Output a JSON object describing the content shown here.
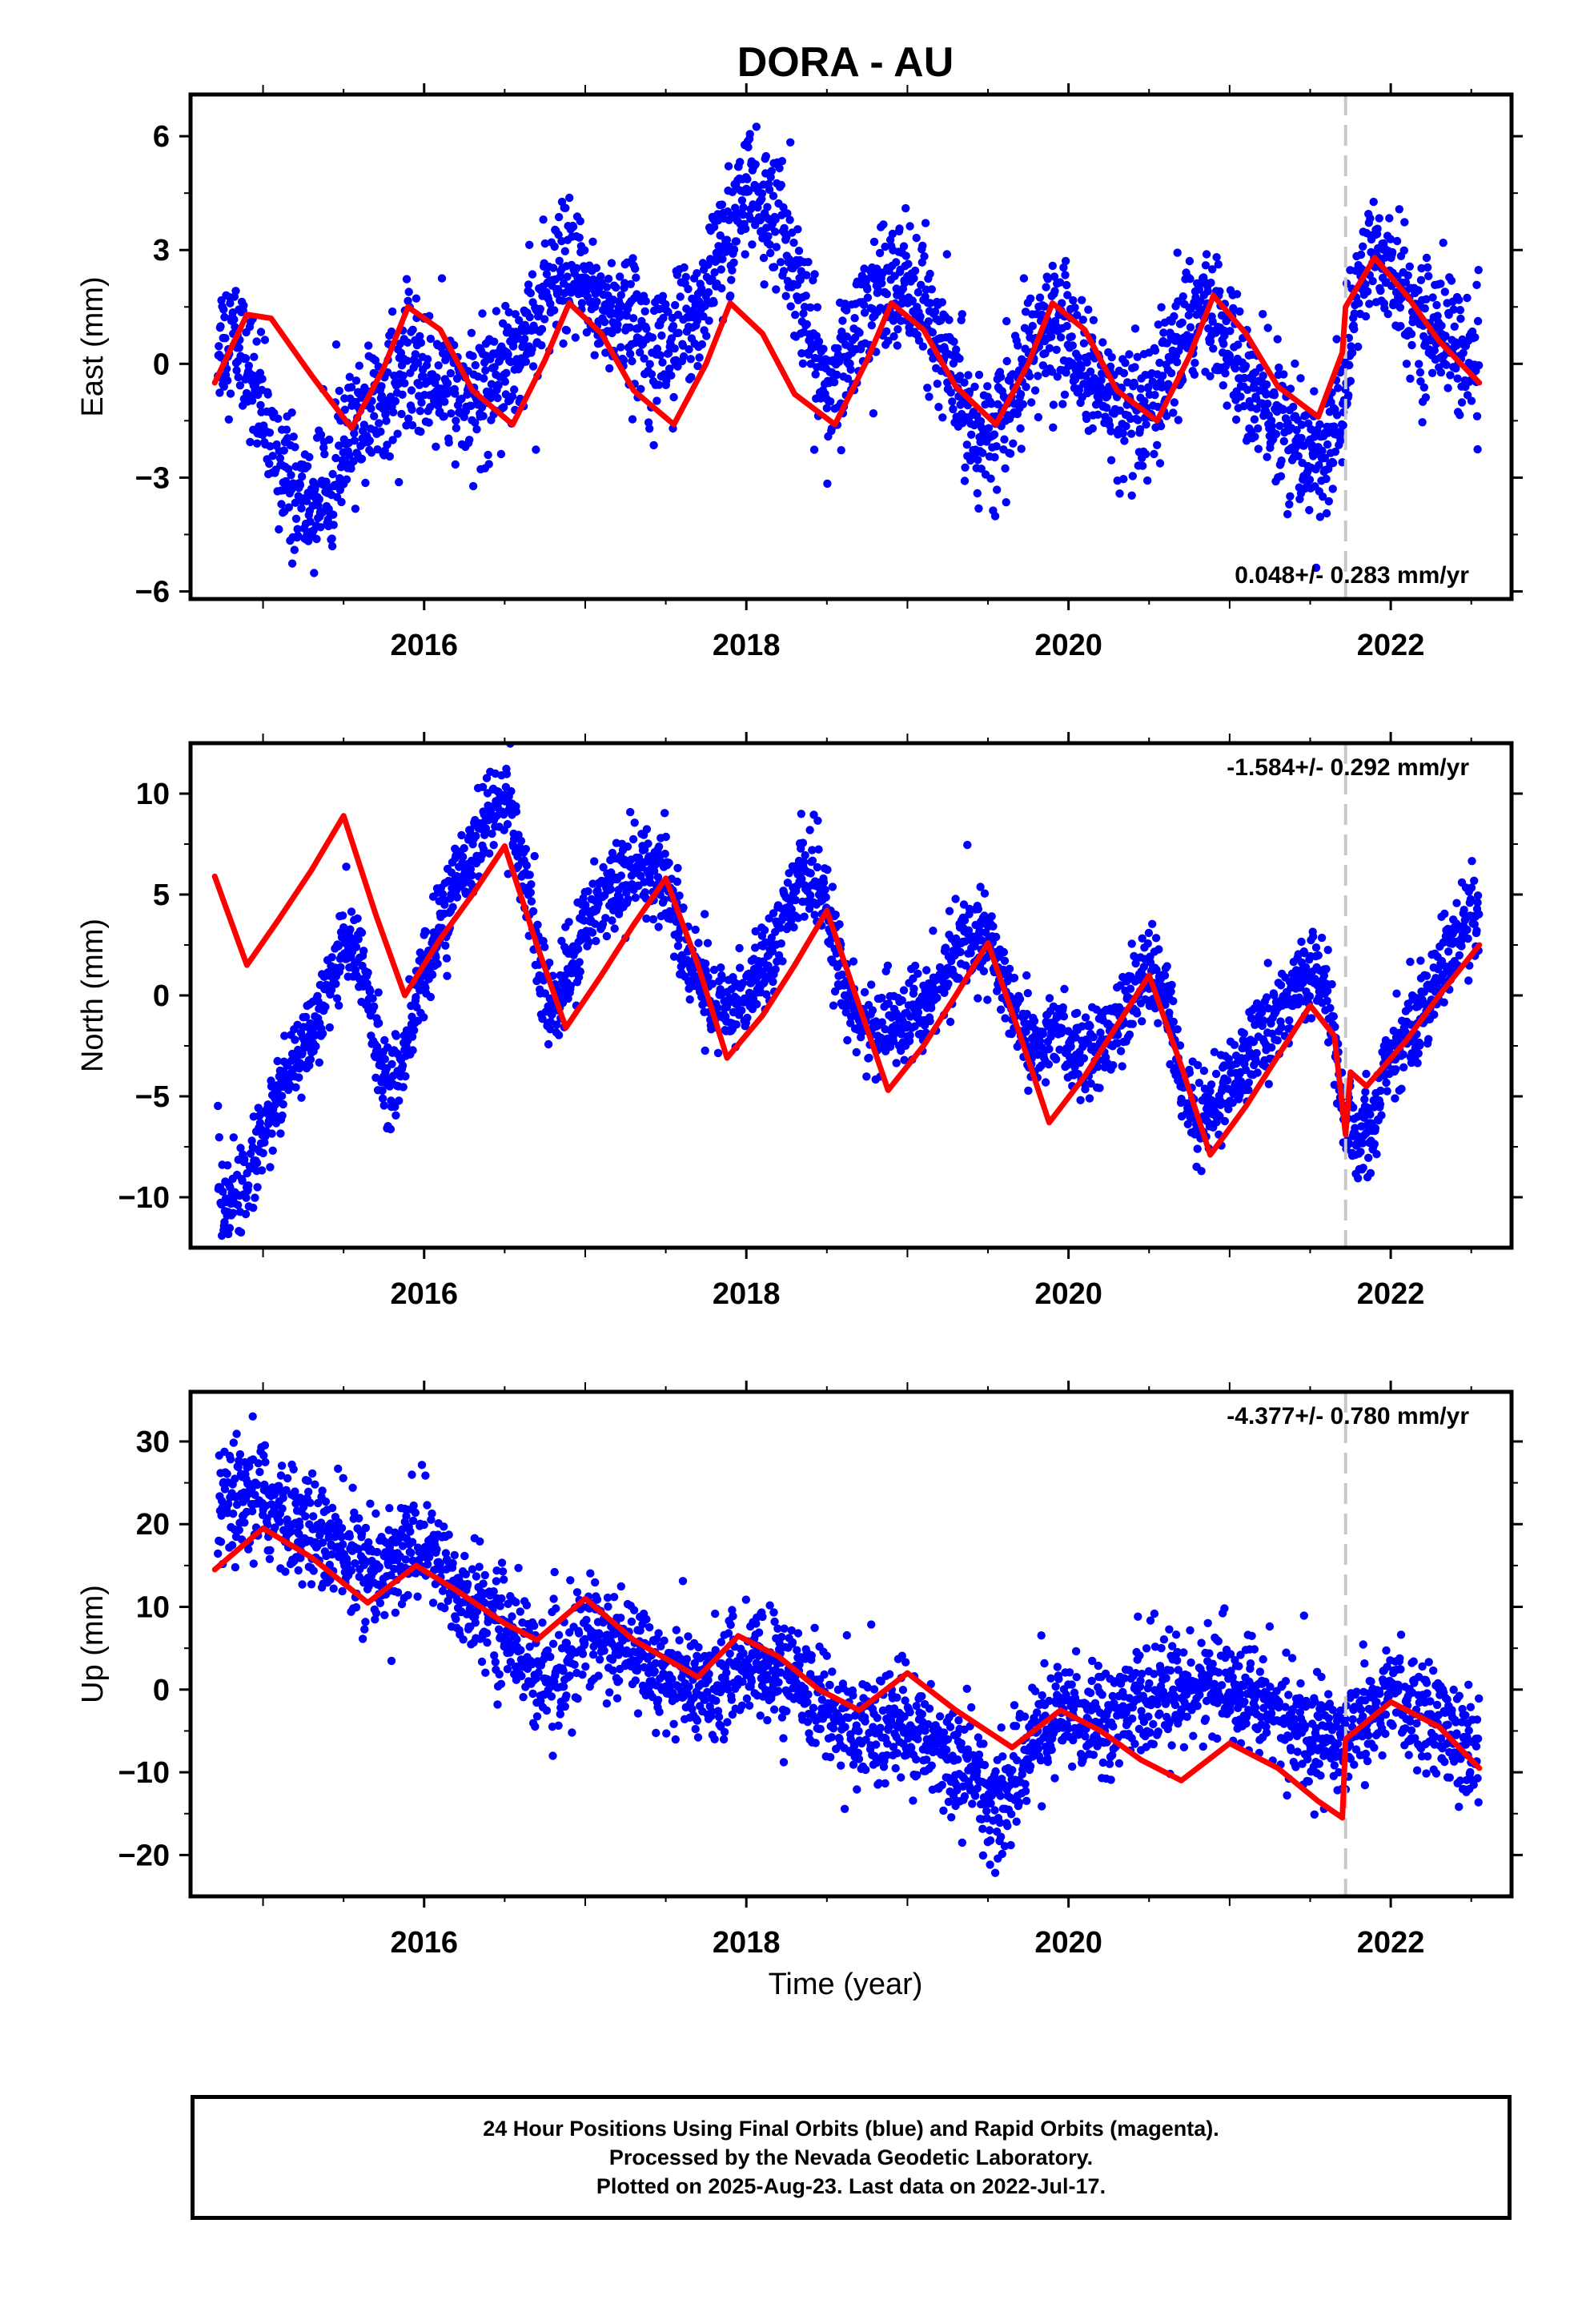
{
  "title": "DORA - AU",
  "colors": {
    "final_orbits": "#0000ff",
    "model_fit": "#ff0000",
    "equipment_change_line": "#c8c8c8"
  },
  "footer": {
    "line1": "24 Hour Positions Using Final Orbits (blue) and Rapid Orbits (magenta).",
    "line2": "Processed by the Nevada Geodetic Laboratory.",
    "line3": "Plotted on 2025-Aug-23. Last data on 2022-Jul-17."
  },
  "chart_data": [
    {
      "type": "scatter",
      "ylabel": "East (mm)",
      "xlabel": "",
      "xlim": [
        2014.55,
        2022.75
      ],
      "ylim": [
        -6.2,
        7.1
      ],
      "yticks": [
        -6,
        -3,
        0,
        3,
        6
      ],
      "ytick_labels": [
        "−6",
        "−3",
        "0",
        "3",
        "6"
      ],
      "xticks": [
        2016,
        2018,
        2020,
        2022
      ],
      "xtick_labels": [
        "2016",
        "2018",
        "2020",
        "2022"
      ],
      "rate_label": "0.048+/- 0.283 mm/yr",
      "rate_position": "bottom-right",
      "equipment_change": 2021.72,
      "series": [
        {
          "role": "daily_positions",
          "x": [
            2014.7,
            2014.8,
            2014.9,
            2015.0,
            2015.1,
            2015.2,
            2015.3,
            2015.4,
            2015.5,
            2015.6,
            2015.7,
            2015.8,
            2015.9,
            2016.0,
            2016.1,
            2016.2,
            2016.3,
            2016.4,
            2016.5,
            2016.6,
            2016.7,
            2016.8,
            2016.9,
            2017.0,
            2017.1,
            2017.2,
            2017.3,
            2017.4,
            2017.5,
            2017.6,
            2017.7,
            2017.8,
            2017.9,
            2018.0,
            2018.1,
            2018.2,
            2018.3,
            2018.4,
            2018.5,
            2018.6,
            2018.7,
            2018.8,
            2018.9,
            2019.0,
            2019.1,
            2019.2,
            2019.3,
            2019.4,
            2019.5,
            2019.6,
            2019.7,
            2019.8,
            2019.9,
            2020.0,
            2020.1,
            2020.2,
            2020.3,
            2020.4,
            2020.5,
            2020.6,
            2020.7,
            2020.8,
            2020.9,
            2021.0,
            2021.1,
            2021.2,
            2021.3,
            2021.4,
            2021.5,
            2021.6,
            2021.7,
            2021.8,
            2021.9,
            2022.0,
            2022.1,
            2022.2,
            2022.3,
            2022.4,
            2022.5
          ],
          "y": [
            0.5,
            0.8,
            0.2,
            -1.5,
            -2.5,
            -3.5,
            -3.8,
            -3.0,
            -2.5,
            -1.5,
            -1.0,
            -0.5,
            0.0,
            -0.3,
            -0.5,
            -0.8,
            -1.0,
            -0.5,
            0.2,
            0.5,
            1.2,
            2.0,
            2.5,
            2.0,
            1.5,
            1.2,
            1.0,
            0.8,
            0.5,
            0.8,
            1.5,
            2.5,
            3.5,
            4.5,
            4.2,
            3.8,
            2.5,
            0.5,
            -0.5,
            0.0,
            1.0,
            2.0,
            2.5,
            2.0,
            1.5,
            0.5,
            -0.5,
            -1.5,
            -2.0,
            -1.5,
            -0.5,
            0.5,
            1.0,
            0.8,
            0.0,
            -0.8,
            -1.2,
            -1.5,
            -1.5,
            -0.5,
            0.5,
            1.5,
            1.2,
            0.5,
            -0.5,
            -1.0,
            -1.5,
            -2.0,
            -2.5,
            -2.5,
            -1.0,
            2.0,
            3.0,
            2.5,
            1.5,
            1.0,
            1.0,
            0.5,
            0.0
          ],
          "spread": 1.0
        },
        {
          "role": "model_fit",
          "x": [
            2014.7,
            2014.9,
            2015.05,
            2015.3,
            2015.55,
            2015.75,
            2015.9,
            2016.1,
            2016.3,
            2016.55,
            2016.75,
            2016.9,
            2017.1,
            2017.3,
            2017.55,
            2017.75,
            2017.9,
            2018.1,
            2018.3,
            2018.55,
            2018.75,
            2018.9,
            2019.1,
            2019.3,
            2019.55,
            2019.75,
            2019.9,
            2020.1,
            2020.3,
            2020.55,
            2020.75,
            2020.9,
            2021.1,
            2021.3,
            2021.55,
            2021.7,
            2021.72,
            2021.9,
            2022.1,
            2022.3,
            2022.55
          ],
          "y": [
            -0.5,
            1.3,
            1.2,
            -0.3,
            -1.7,
            -0.1,
            1.5,
            0.9,
            -0.7,
            -1.6,
            0.1,
            1.6,
            0.8,
            -0.7,
            -1.6,
            0.0,
            1.6,
            0.8,
            -0.8,
            -1.6,
            0.1,
            1.6,
            0.9,
            -0.6,
            -1.6,
            0.0,
            1.6,
            0.9,
            -0.7,
            -1.5,
            0.2,
            1.8,
            0.8,
            -0.6,
            -1.4,
            0.3,
            1.5,
            2.8,
            1.8,
            0.6,
            -0.5
          ]
        }
      ]
    },
    {
      "type": "scatter",
      "ylabel": "North (mm)",
      "xlabel": "",
      "xlim": [
        2014.55,
        2022.75
      ],
      "ylim": [
        -12.5,
        12.5
      ],
      "yticks": [
        -10,
        -5,
        0,
        5,
        10
      ],
      "ytick_labels": [
        "−10",
        "−5",
        "0",
        "5",
        "10"
      ],
      "xticks": [
        2016,
        2018,
        2020,
        2022
      ],
      "xtick_labels": [
        "2016",
        "2018",
        "2020",
        "2022"
      ],
      "rate_label": "-1.584+/- 0.292 mm/yr",
      "rate_position": "top-right",
      "equipment_change": 2021.72,
      "series": [
        {
          "role": "daily_positions",
          "x": [
            2014.7,
            2014.8,
            2014.9,
            2015.0,
            2015.1,
            2015.2,
            2015.3,
            2015.4,
            2015.5,
            2015.6,
            2015.7,
            2015.8,
            2015.9,
            2016.0,
            2016.1,
            2016.2,
            2016.3,
            2016.4,
            2016.5,
            2016.6,
            2016.7,
            2016.8,
            2016.9,
            2017.0,
            2017.1,
            2017.2,
            2017.3,
            2017.4,
            2017.5,
            2017.6,
            2017.7,
            2017.8,
            2017.9,
            2018.0,
            2018.1,
            2018.2,
            2018.3,
            2018.4,
            2018.5,
            2018.6,
            2018.7,
            2018.8,
            2018.9,
            2019.0,
            2019.1,
            2019.2,
            2019.3,
            2019.4,
            2019.5,
            2019.6,
            2019.7,
            2019.8,
            2019.9,
            2020.0,
            2020.1,
            2020.2,
            2020.3,
            2020.4,
            2020.5,
            2020.6,
            2020.7,
            2020.8,
            2020.9,
            2021.0,
            2021.1,
            2021.2,
            2021.3,
            2021.4,
            2021.5,
            2021.6,
            2021.7,
            2021.8,
            2021.9,
            2022.0,
            2022.1,
            2022.2,
            2022.3,
            2022.4,
            2022.5
          ],
          "y": [
            -9.5,
            -10.5,
            -9.0,
            -7.0,
            -5.0,
            -3.5,
            -2.0,
            0.5,
            2.5,
            2.0,
            -2.0,
            -5.0,
            -2.0,
            1.0,
            3.5,
            5.5,
            7.0,
            9.0,
            10.0,
            7.0,
            2.0,
            -1.0,
            1.0,
            3.5,
            5.0,
            6.0,
            6.0,
            6.5,
            6.0,
            2.5,
            1.0,
            -0.5,
            -1.0,
            0.5,
            1.5,
            3.5,
            5.5,
            6.0,
            4.0,
            0.5,
            -1.0,
            -2.0,
            -1.5,
            -1.0,
            -0.5,
            0.5,
            2.0,
            3.0,
            2.5,
            1.0,
            -1.5,
            -2.5,
            -2.0,
            -2.5,
            -3.0,
            -2.5,
            -1.5,
            0.0,
            1.0,
            0.0,
            -4.0,
            -6.0,
            -5.5,
            -4.5,
            -3.0,
            -2.0,
            -1.0,
            0.5,
            1.0,
            0.5,
            -5.5,
            -7.0,
            -6.0,
            -3.0,
            -2.0,
            -0.5,
            1.0,
            2.5,
            3.5
          ],
          "spread": 1.3
        },
        {
          "role": "model_fit",
          "x": [
            2014.7,
            2014.9,
            2015.1,
            2015.3,
            2015.5,
            2015.7,
            2015.88,
            2016.1,
            2016.3,
            2016.5,
            2016.7,
            2016.88,
            2017.1,
            2017.3,
            2017.5,
            2017.7,
            2017.88,
            2018.1,
            2018.3,
            2018.5,
            2018.7,
            2018.88,
            2019.1,
            2019.3,
            2019.5,
            2019.7,
            2019.88,
            2020.1,
            2020.3,
            2020.5,
            2020.7,
            2020.88,
            2021.1,
            2021.3,
            2021.5,
            2021.65,
            2021.72,
            2021.75,
            2021.85,
            2022.1,
            2022.3,
            2022.55
          ],
          "y": [
            5.9,
            1.5,
            3.8,
            6.2,
            8.9,
            4.0,
            0.0,
            2.8,
            5.0,
            7.4,
            2.5,
            -1.6,
            1.0,
            3.5,
            5.8,
            1.5,
            -3.1,
            -1.0,
            1.5,
            4.2,
            -0.5,
            -4.7,
            -2.5,
            0.0,
            2.6,
            -2.0,
            -6.3,
            -4.0,
            -1.5,
            1.0,
            -3.5,
            -7.9,
            -5.5,
            -3.0,
            -0.5,
            -2.0,
            -6.9,
            -3.8,
            -4.5,
            -2.2,
            0.0,
            2.5
          ]
        }
      ]
    },
    {
      "type": "scatter",
      "ylabel": "Up (mm)",
      "xlabel": "Time (year)",
      "xlim": [
        2014.55,
        2022.75
      ],
      "ylim": [
        -25,
        36
      ],
      "yticks": [
        -20,
        -10,
        0,
        10,
        20,
        30
      ],
      "ytick_labels": [
        "−20",
        "−10",
        "0",
        "10",
        "20",
        "30"
      ],
      "xticks": [
        2016,
        2018,
        2020,
        2022
      ],
      "xtick_labels": [
        "2016",
        "2018",
        "2020",
        "2022"
      ],
      "rate_label": "-4.377+/- 0.780 mm/yr",
      "rate_position": "top-right",
      "equipment_change": 2021.72,
      "series": [
        {
          "role": "daily_positions",
          "x": [
            2014.7,
            2014.8,
            2014.9,
            2015.0,
            2015.1,
            2015.2,
            2015.3,
            2015.4,
            2015.5,
            2015.6,
            2015.7,
            2015.8,
            2015.9,
            2016.0,
            2016.1,
            2016.2,
            2016.3,
            2016.4,
            2016.5,
            2016.6,
            2016.7,
            2016.8,
            2016.9,
            2017.0,
            2017.1,
            2017.2,
            2017.3,
            2017.4,
            2017.5,
            2017.6,
            2017.7,
            2017.8,
            2017.9,
            2018.0,
            2018.1,
            2018.2,
            2018.3,
            2018.4,
            2018.5,
            2018.6,
            2018.7,
            2018.8,
            2018.9,
            2019.0,
            2019.1,
            2019.2,
            2019.3,
            2019.4,
            2019.5,
            2019.6,
            2019.7,
            2019.8,
            2019.9,
            2020.0,
            2020.1,
            2020.2,
            2020.3,
            2020.4,
            2020.5,
            2020.6,
            2020.7,
            2020.8,
            2020.9,
            2021.0,
            2021.1,
            2021.2,
            2021.3,
            2021.4,
            2021.5,
            2021.6,
            2021.7,
            2021.8,
            2021.9,
            2022.0,
            2022.1,
            2022.2,
            2022.3,
            2022.4,
            2022.5
          ],
          "y": [
            21,
            22,
            22,
            23,
            21,
            20,
            19,
            18,
            17,
            15,
            14,
            15,
            17,
            18,
            15,
            12,
            10,
            9,
            8,
            5,
            2,
            1,
            3,
            8,
            6,
            5,
            4,
            3,
            2,
            1,
            0,
            1,
            2,
            3,
            3,
            2,
            1,
            0,
            -2,
            -4,
            -5,
            -5,
            -4,
            -5,
            -6,
            -7,
            -8,
            -10,
            -13,
            -14,
            -9,
            -5,
            -4,
            -3,
            -3,
            -3,
            -2,
            -1,
            -2,
            -1,
            0,
            1,
            1,
            0,
            0,
            -1,
            -3,
            -5,
            -6,
            -6,
            -6,
            -4,
            -2,
            -1,
            -2,
            -3,
            -4,
            -6,
            -8
          ],
          "spread": 4.0
        },
        {
          "role": "model_fit",
          "x": [
            2014.7,
            2015.0,
            2015.3,
            2015.65,
            2015.95,
            2016.2,
            2016.5,
            2016.7,
            2017.0,
            2017.3,
            2017.7,
            2017.95,
            2018.2,
            2018.45,
            2018.7,
            2019.0,
            2019.3,
            2019.65,
            2019.95,
            2020.2,
            2020.45,
            2020.7,
            2021.0,
            2021.3,
            2021.55,
            2021.7,
            2021.72,
            2022.0,
            2022.3,
            2022.55
          ],
          "y": [
            14.5,
            19.5,
            16.0,
            10.5,
            15.0,
            12.0,
            8.0,
            6.0,
            11.0,
            6.0,
            1.5,
            6.5,
            4.0,
            0.0,
            -2.5,
            2.0,
            -2.5,
            -7.0,
            -2.5,
            -5.0,
            -8.5,
            -11.0,
            -6.5,
            -9.5,
            -13.5,
            -15.5,
            -6.0,
            -1.5,
            -4.5,
            -9.5
          ]
        }
      ]
    }
  ]
}
